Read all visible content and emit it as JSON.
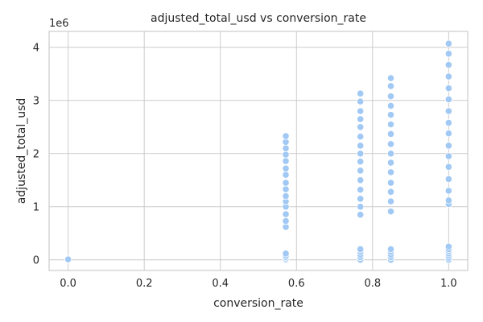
{
  "chart_data": {
    "type": "scatter",
    "title": "adjusted_total_usd vs conversion_rate",
    "xlabel": "conversion_rate",
    "ylabel": "adjusted_total_usd",
    "y_offset_label": "1e6",
    "xlim": [
      -0.05,
      1.05
    ],
    "ylim": [
      -0.2,
      4.3
    ],
    "x_ticks": [
      0.0,
      0.2,
      0.4,
      0.6,
      0.8,
      1.0
    ],
    "x_tick_labels": [
      "0.0",
      "0.2",
      "0.4",
      "0.6",
      "0.8",
      "1.0"
    ],
    "y_ticks": [
      0,
      1,
      2,
      3,
      4
    ],
    "y_tick_labels": [
      "0",
      "1",
      "2",
      "3",
      "4"
    ],
    "y_unit_scale": "1e6",
    "grid": true,
    "point_color": "#a1c9f4",
    "series": [
      {
        "points": [
          [
            0.0,
            0.0
          ],
          [
            0.0,
            0.01
          ],
          [
            0.572,
            0.62
          ],
          [
            0.572,
            0.73
          ],
          [
            0.572,
            0.86
          ],
          [
            0.572,
            1.0
          ],
          [
            0.572,
            1.1
          ],
          [
            0.572,
            1.2
          ],
          [
            0.572,
            1.33
          ],
          [
            0.572,
            1.45
          ],
          [
            0.572,
            1.6
          ],
          [
            0.572,
            1.72
          ],
          [
            0.572,
            1.86
          ],
          [
            0.572,
            1.98
          ],
          [
            0.572,
            2.1
          ],
          [
            0.572,
            2.22
          ],
          [
            0.572,
            2.33
          ],
          [
            0.572,
            0.0
          ],
          [
            0.572,
            0.02
          ],
          [
            0.572,
            0.05
          ],
          [
            0.572,
            0.08
          ],
          [
            0.572,
            0.12
          ],
          [
            0.768,
            0.85
          ],
          [
            0.768,
            1.0
          ],
          [
            0.768,
            1.15
          ],
          [
            0.768,
            1.32
          ],
          [
            0.768,
            1.5
          ],
          [
            0.768,
            1.68
          ],
          [
            0.768,
            1.85
          ],
          [
            0.768,
            2.0
          ],
          [
            0.768,
            2.15
          ],
          [
            0.768,
            2.32
          ],
          [
            0.768,
            2.5
          ],
          [
            0.768,
            2.65
          ],
          [
            0.768,
            2.8
          ],
          [
            0.768,
            2.98
          ],
          [
            0.768,
            3.13
          ],
          [
            0.768,
            0.0
          ],
          [
            0.768,
            0.05
          ],
          [
            0.768,
            0.1
          ],
          [
            0.768,
            0.15
          ],
          [
            0.768,
            0.2
          ],
          [
            0.848,
            0.91
          ],
          [
            0.848,
            1.1
          ],
          [
            0.848,
            1.28
          ],
          [
            0.848,
            1.45
          ],
          [
            0.848,
            1.65
          ],
          [
            0.848,
            1.83
          ],
          [
            0.848,
            2.0
          ],
          [
            0.848,
            2.18
          ],
          [
            0.848,
            2.37
          ],
          [
            0.848,
            2.55
          ],
          [
            0.848,
            2.73
          ],
          [
            0.848,
            2.9
          ],
          [
            0.848,
            3.08
          ],
          [
            0.848,
            3.27
          ],
          [
            0.848,
            3.42
          ],
          [
            0.848,
            0.0
          ],
          [
            0.848,
            0.05
          ],
          [
            0.848,
            0.1
          ],
          [
            0.848,
            0.15
          ],
          [
            0.848,
            0.2
          ],
          [
            1.0,
            1.05
          ],
          [
            1.0,
            1.12
          ],
          [
            1.0,
            1.3
          ],
          [
            1.0,
            1.52
          ],
          [
            1.0,
            1.75
          ],
          [
            1.0,
            1.95
          ],
          [
            1.0,
            2.15
          ],
          [
            1.0,
            2.38
          ],
          [
            1.0,
            2.58
          ],
          [
            1.0,
            2.8
          ],
          [
            1.0,
            3.02
          ],
          [
            1.0,
            3.23
          ],
          [
            1.0,
            3.45
          ],
          [
            1.0,
            3.67
          ],
          [
            1.0,
            3.88
          ],
          [
            1.0,
            4.07
          ],
          [
            1.0,
            0.0
          ],
          [
            1.0,
            0.04
          ],
          [
            1.0,
            0.08
          ],
          [
            1.0,
            0.12
          ],
          [
            1.0,
            0.16
          ],
          [
            1.0,
            0.2
          ],
          [
            1.0,
            0.25
          ]
        ]
      }
    ]
  }
}
